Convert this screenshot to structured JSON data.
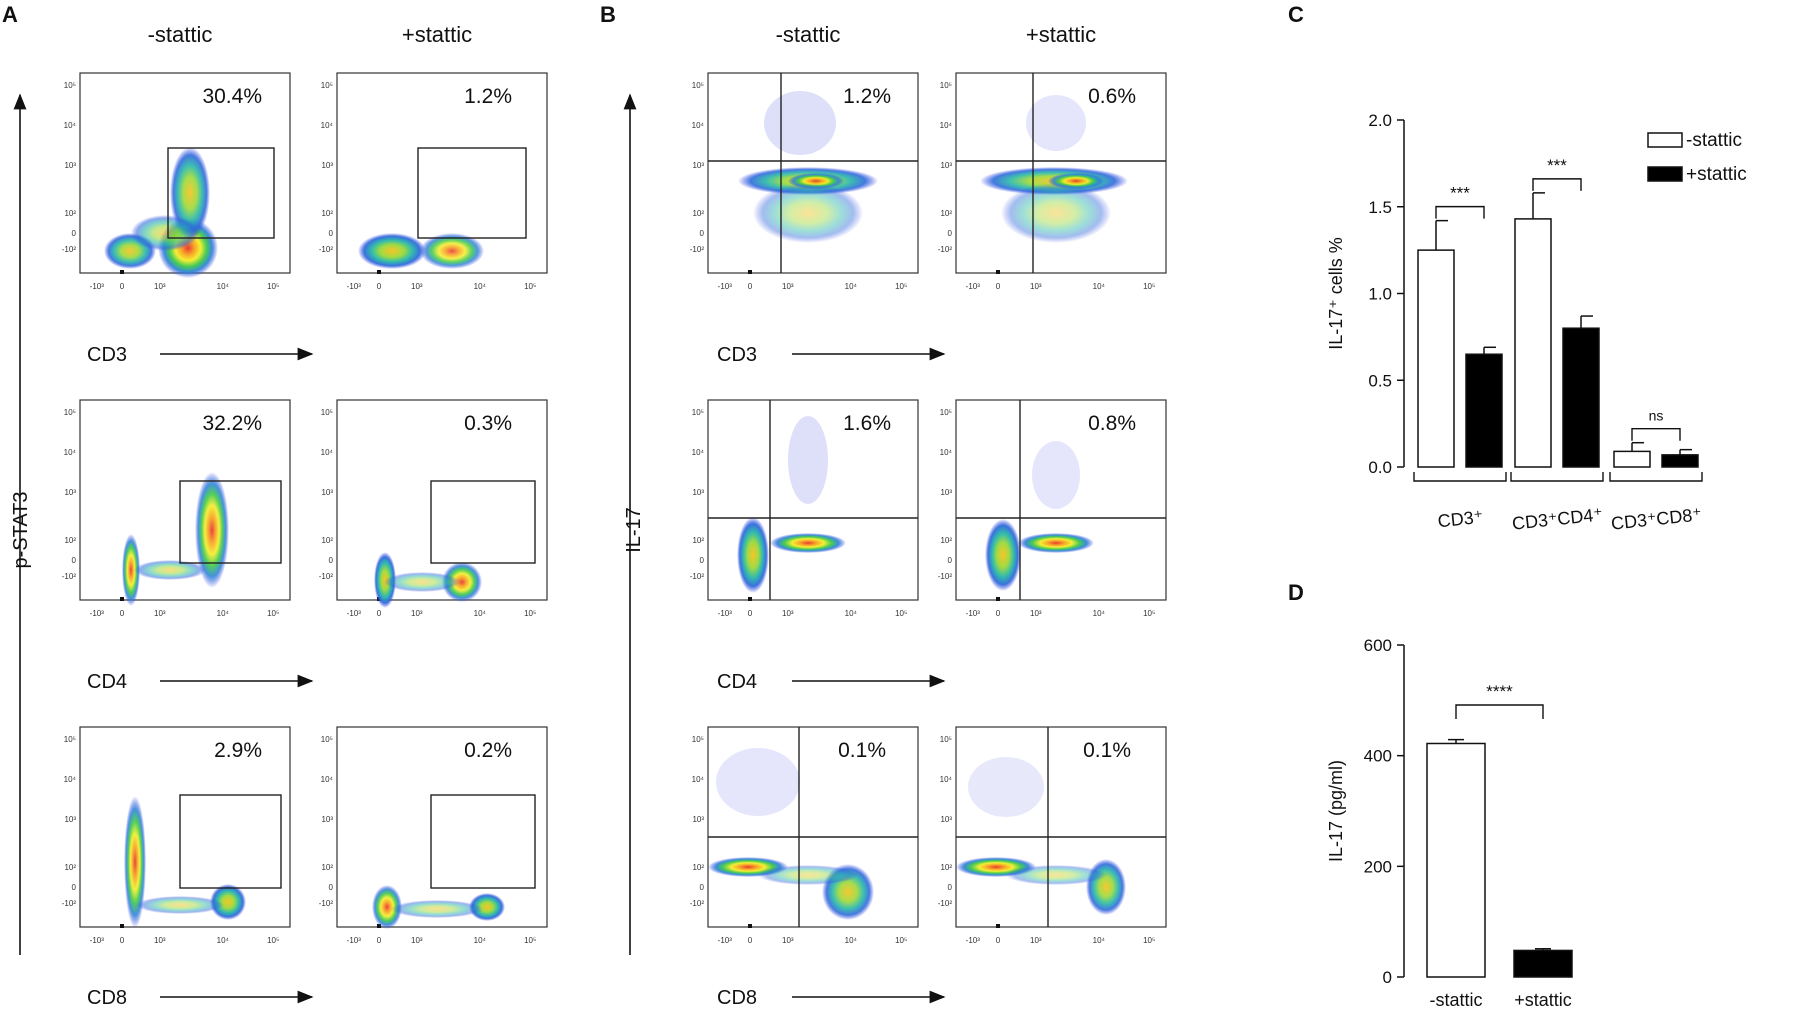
{
  "panel_letters": {
    "a": "A",
    "b": "B",
    "c": "C",
    "d": "D"
  },
  "column_headers": {
    "minus": "-stattic",
    "plus": "+stattic"
  },
  "panel_a": {
    "y_axis_label": "p-STAT3",
    "rows": [
      {
        "marker": "CD3",
        "minus_pct": "30.4%",
        "plus_pct": "1.2%"
      },
      {
        "marker": "CD4",
        "minus_pct": "32.2%",
        "plus_pct": "0.3%"
      },
      {
        "marker": "CD8",
        "minus_pct": "2.9%",
        "plus_pct": "0.2%"
      }
    ]
  },
  "panel_b": {
    "y_axis_label": "IL-17",
    "rows": [
      {
        "marker": "CD3",
        "minus_pct": "1.2%",
        "plus_pct": "0.6%"
      },
      {
        "marker": "CD4",
        "minus_pct": "1.6%",
        "plus_pct": "0.8%"
      },
      {
        "marker": "CD8",
        "minus_pct": "0.1%",
        "plus_pct": "0.1%"
      }
    ]
  },
  "flow_ticks": {
    "x": [
      "-10³",
      "0",
      "10³",
      "10⁴",
      "10⁵"
    ],
    "y": [
      "10⁵",
      "10⁴",
      "10³",
      "10²",
      "0",
      "-10²"
    ]
  },
  "chart_data": [
    {
      "id": "C",
      "type": "bar",
      "ylabel": "IL-17⁺ cells %",
      "ylim": [
        0,
        2.0
      ],
      "yticks": [
        "0.0",
        "0.5",
        "1.0",
        "1.5",
        "2.0"
      ],
      "categories": [
        "CD3⁺",
        "CD3⁺CD4⁺",
        "CD3⁺CD8⁺"
      ],
      "series": [
        {
          "name": "-stattic",
          "color": "#ffffff",
          "values": [
            1.25,
            1.43,
            0.09
          ],
          "errors": [
            0.17,
            0.15,
            0.05
          ]
        },
        {
          "name": "+stattic",
          "color": "#000000",
          "values": [
            0.65,
            0.8,
            0.07
          ],
          "errors": [
            0.04,
            0.07,
            0.03
          ]
        }
      ],
      "significance": [
        "***",
        "***",
        "ns"
      ],
      "legend": "top-right"
    },
    {
      "id": "D",
      "type": "bar",
      "ylabel": "IL-17  (pg/ml)",
      "ylim": [
        0,
        600
      ],
      "yticks": [
        "0",
        "200",
        "400",
        "600"
      ],
      "categories": [
        "-stattic",
        "+stattic"
      ],
      "values": [
        422,
        48
      ],
      "errors": [
        7,
        3
      ],
      "colors": [
        "#ffffff",
        "#000000"
      ],
      "significance": "****"
    }
  ]
}
